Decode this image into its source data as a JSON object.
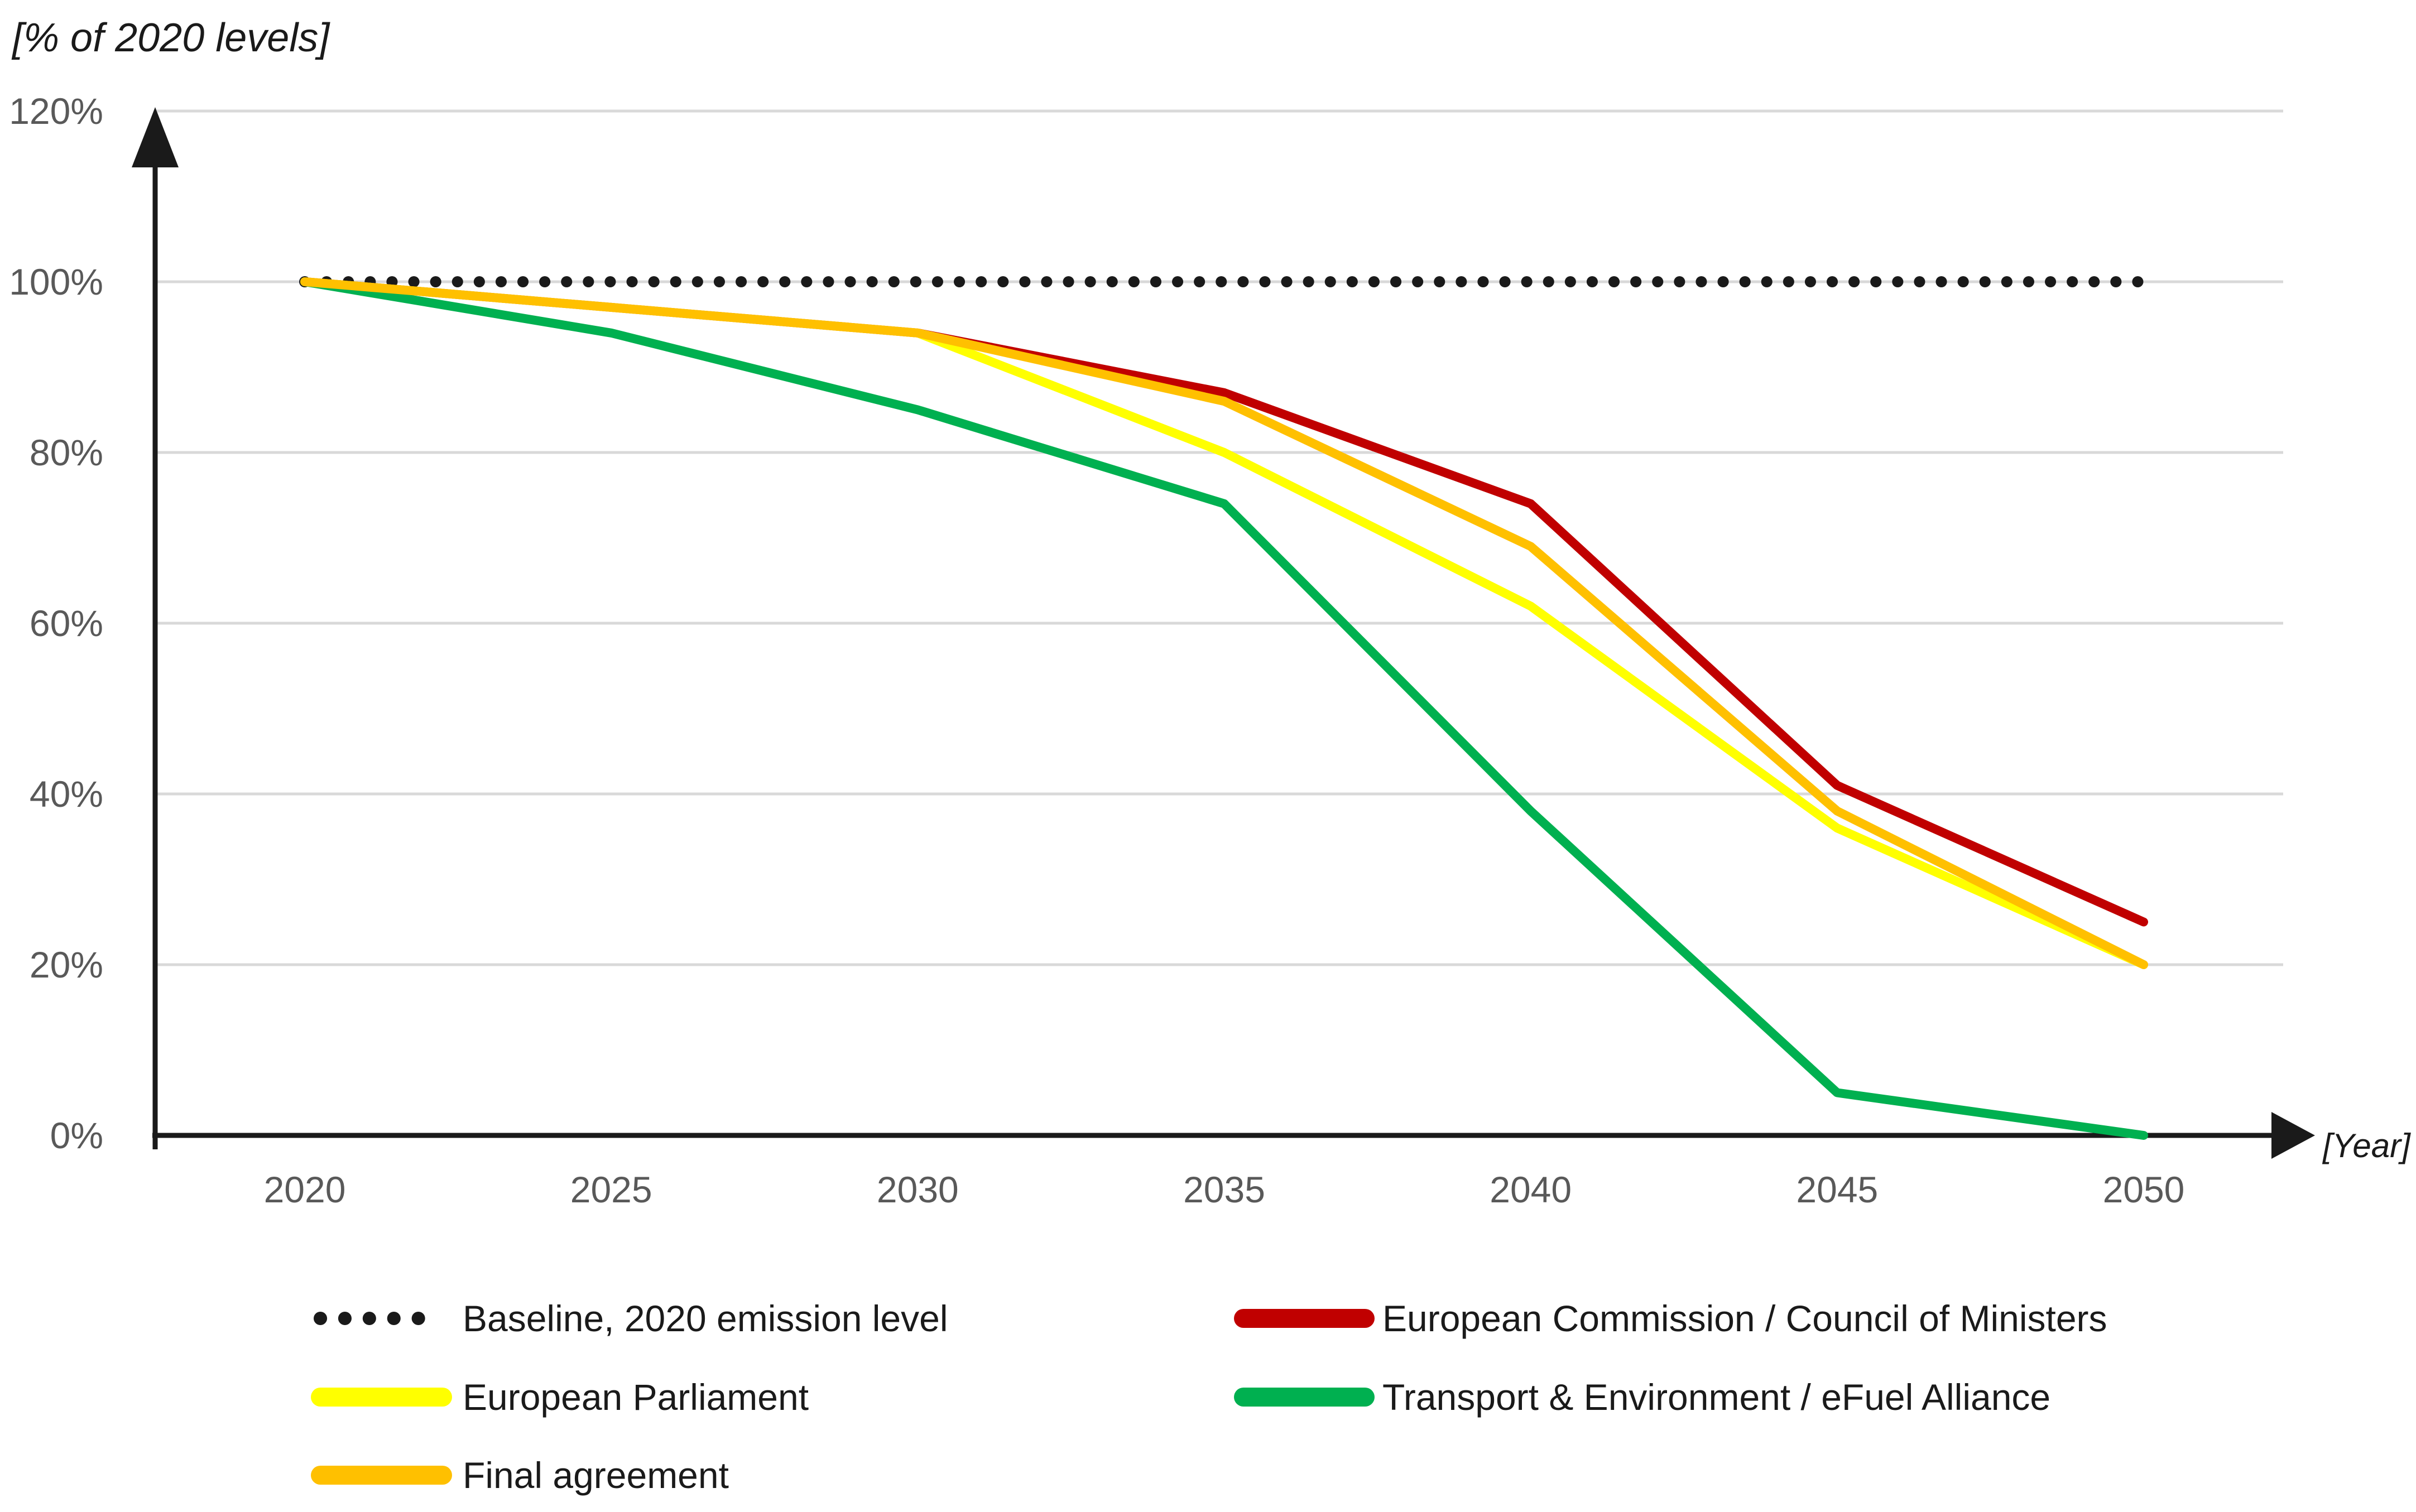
{
  "chart_data": {
    "type": "line",
    "title": "[% of 2020 levels]",
    "xlabel": "[Year]",
    "ylabel": "",
    "x": [
      2020,
      2025,
      2030,
      2035,
      2040,
      2045,
      2050
    ],
    "x_tick_labels": [
      "2020",
      "2025",
      "2030",
      "2035",
      "2040",
      "2045",
      "2050"
    ],
    "ylim": [
      0,
      120
    ],
    "y_tick_step": 20,
    "y_tick_labels": [
      "0%",
      "20%",
      "40%",
      "60%",
      "80%",
      "100%",
      "120%"
    ],
    "grid": "horizontal",
    "legend_position": "bottom",
    "series": [
      {
        "name": "Baseline, 2020 emission level",
        "color": "#1a1a1a",
        "style": "dotted",
        "values": [
          100,
          100,
          100,
          100,
          100,
          100,
          100
        ]
      },
      {
        "name": "European Commission / Council of Ministers",
        "color": "#c00000",
        "style": "solid",
        "values": [
          100,
          97,
          94,
          87,
          74,
          41,
          25
        ]
      },
      {
        "name": "European Parliament",
        "color": "#ffff00",
        "style": "solid",
        "values": [
          100,
          97,
          94,
          80,
          62,
          36,
          20
        ]
      },
      {
        "name": "Transport & Environment / eFuel Alliance",
        "color": "#00b050",
        "style": "solid",
        "values": [
          100,
          94,
          85,
          74,
          38,
          5,
          0
        ]
      },
      {
        "name": "Final agreement",
        "color": "#ffc000",
        "style": "solid",
        "values": [
          100,
          97,
          94,
          86,
          69,
          38,
          20
        ]
      }
    ],
    "legend_rows": [
      [
        0,
        1
      ],
      [
        2,
        3
      ],
      [
        4,
        null
      ]
    ],
    "grid_color": "#d9d9d9",
    "axis_color": "#1a1a1a",
    "tick_label_color": "#595959",
    "text_color": "#1a1a1a"
  }
}
